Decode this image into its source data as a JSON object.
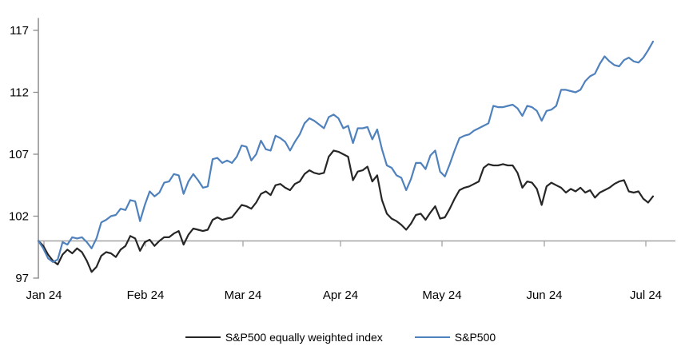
{
  "chart_data": {
    "type": "line",
    "title": "",
    "xlabel": "",
    "ylabel": "",
    "x_tick_labels": [
      "Jan 24",
      "Feb 24",
      "Mar 24",
      "Apr 24",
      "May 24",
      "Jun 24",
      "Jul 24"
    ],
    "y_ticks": [
      97,
      102,
      107,
      112,
      117
    ],
    "ylim": [
      97,
      118
    ],
    "baseline_value": 100,
    "grid": false,
    "legend_position": "bottom-center",
    "axis_color": "#8c8c8c",
    "baseline_color": "#a3a3a3",
    "series": [
      {
        "name": "S&P500 equally weighted index",
        "color": "#262626",
        "values": [
          100.0,
          99.6,
          98.9,
          98.4,
          98.1,
          98.9,
          99.3,
          99.0,
          99.4,
          99.1,
          98.4,
          97.5,
          97.9,
          98.8,
          99.1,
          99.0,
          98.7,
          99.3,
          99.6,
          100.4,
          100.2,
          99.2,
          99.9,
          100.1,
          99.6,
          100.0,
          100.3,
          100.3,
          100.6,
          100.8,
          99.7,
          100.5,
          101.0,
          100.9,
          100.8,
          100.9,
          101.7,
          101.9,
          101.7,
          101.8,
          101.9,
          102.4,
          102.9,
          102.8,
          102.6,
          103.1,
          103.8,
          104.0,
          103.7,
          104.5,
          104.6,
          104.3,
          104.1,
          104.6,
          104.8,
          105.4,
          105.7,
          105.5,
          105.4,
          105.5,
          106.8,
          107.3,
          107.2,
          107.0,
          106.8,
          104.9,
          105.6,
          105.7,
          106.0,
          104.8,
          105.3,
          103.3,
          102.2,
          101.8,
          101.6,
          101.3,
          100.9,
          101.4,
          102.1,
          102.2,
          101.7,
          102.3,
          102.8,
          101.8,
          101.9,
          102.6,
          103.4,
          104.1,
          104.3,
          104.4,
          104.6,
          104.8,
          105.9,
          106.2,
          106.1,
          106.1,
          106.2,
          106.1,
          106.1,
          105.5,
          104.3,
          104.8,
          104.7,
          104.2,
          102.9,
          104.4,
          104.7,
          104.5,
          104.3,
          103.9,
          104.2,
          104.0,
          104.3,
          103.9,
          104.1,
          103.5,
          103.9,
          104.1,
          104.3,
          104.6,
          104.8,
          104.9,
          104.0,
          103.9,
          104.0,
          103.4,
          103.1,
          103.6
        ]
      },
      {
        "name": "S&P500",
        "color": "#4f81bd",
        "values": [
          100.0,
          99.4,
          98.6,
          98.3,
          98.5,
          99.9,
          99.7,
          100.3,
          100.2,
          100.3,
          99.9,
          99.4,
          100.2,
          101.5,
          101.7,
          102.0,
          102.1,
          102.6,
          102.5,
          103.3,
          103.2,
          101.6,
          102.9,
          104.0,
          103.6,
          103.9,
          104.7,
          104.8,
          105.4,
          105.3,
          103.8,
          104.8,
          105.4,
          104.9,
          104.3,
          104.4,
          106.6,
          106.7,
          106.3,
          106.5,
          106.3,
          106.8,
          107.7,
          107.6,
          106.5,
          107.0,
          108.1,
          107.4,
          107.3,
          108.5,
          108.3,
          108.0,
          107.3,
          108.0,
          108.6,
          109.5,
          109.9,
          109.7,
          109.4,
          109.1,
          110.0,
          110.2,
          109.9,
          109.1,
          109.3,
          107.9,
          109.1,
          109.1,
          109.2,
          108.2,
          109.0,
          107.4,
          106.1,
          105.9,
          105.3,
          105.1,
          104.1,
          105.0,
          106.3,
          106.3,
          105.8,
          106.9,
          107.3,
          105.6,
          105.2,
          106.2,
          107.3,
          108.3,
          108.5,
          108.6,
          108.9,
          109.1,
          109.3,
          109.5,
          110.9,
          110.8,
          110.8,
          110.9,
          111.0,
          110.7,
          110.1,
          110.9,
          110.8,
          110.5,
          109.7,
          110.5,
          110.6,
          110.9,
          112.2,
          112.2,
          112.1,
          112.0,
          112.2,
          112.9,
          113.3,
          113.5,
          114.3,
          114.9,
          114.5,
          114.2,
          114.1,
          114.6,
          114.8,
          114.5,
          114.4,
          114.8,
          115.4,
          116.1
        ]
      }
    ]
  }
}
